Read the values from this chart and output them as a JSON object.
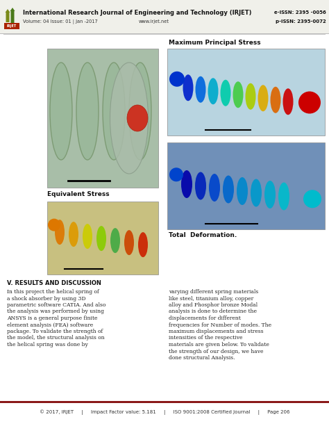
{
  "title_journal": "International Research Journal of Engineering and Technology (IRJET)",
  "volume_info": "Volume: 04 Issue: 01 | Jan -2017",
  "website": "www.irjet.net",
  "eissn": "e-ISSN: 2395 -0056",
  "pissn": "p-ISSN: 2395-0072",
  "footer_text": "© 2017, IRJET     |     Impact Factor value: 5.181     |     ISO 9001:2008 Certified Journal     |     Page 206",
  "header_line_color": "#8B1A1A",
  "footer_line_color": "#8B1A1A",
  "bg_color": "#ffffff",
  "label_top_right": "Maximum Principal Stress",
  "label_bottom_left": "Equivalent Stress",
  "label_bottom_right": "Total  Deformation.",
  "section_title": "V. RESULTS AND DISCUSSION",
  "body_left": "In this project the helical spring of a shock absorber by using 3D parametric software CATIA. And also the analysis was performed by using ANSYS is a general purpose finite element analysis (FEA) software package. To validate the strength of the model, the structural analysis on the helical spring was done by",
  "body_right": "varying different spring materials like steel, titanium alloy, copper alloy and Phosphor bronze Modal analysis is done to determine the displacements for different frequencies for Number of modes. The maximum displacements and stress intensities of the respective materials are given below. To validate the strength of our design, we have done structural Analysis.",
  "header_bg": "#f0f0ea",
  "tl_img_bg": "#a8bea8",
  "tr_img_bg": "#b8d4e0",
  "bl_img_bg": "#c8c080",
  "br_img_bg": "#7090b8"
}
